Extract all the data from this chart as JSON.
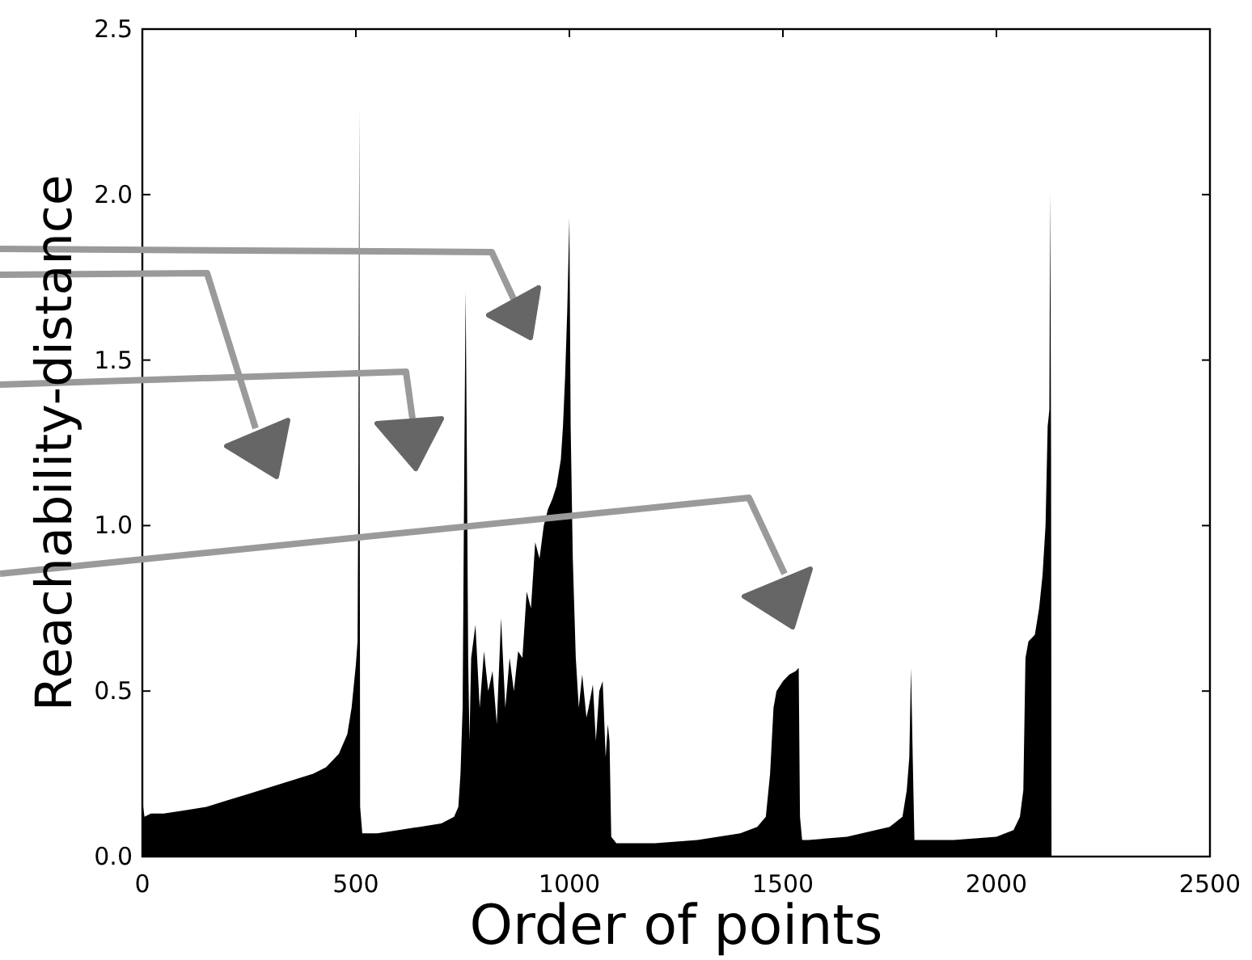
{
  "chart_data": {
    "type": "area",
    "xlabel": "Order of points",
    "ylabel": "Reachability-distance",
    "x": [
      0,
      2,
      5,
      20,
      50,
      100,
      150,
      200,
      250,
      300,
      350,
      400,
      430,
      460,
      480,
      490,
      500,
      504,
      506,
      508,
      510,
      515,
      550,
      600,
      650,
      700,
      730,
      740,
      745,
      750,
      754,
      757,
      760,
      763,
      766,
      770,
      780,
      790,
      800,
      810,
      820,
      830,
      840,
      850,
      860,
      870,
      880,
      890,
      900,
      910,
      920,
      930,
      940,
      950,
      960,
      970,
      980,
      985,
      990,
      995,
      1000,
      1003,
      1008,
      1015,
      1022,
      1030,
      1040,
      1045,
      1055,
      1062,
      1070,
      1078,
      1085,
      1090,
      1094,
      1098,
      1110,
      1200,
      1300,
      1400,
      1440,
      1460,
      1470,
      1478,
      1485,
      1500,
      1515,
      1530,
      1537,
      1540,
      1545,
      1560,
      1650,
      1750,
      1780,
      1790,
      1796,
      1800,
      1804,
      1808,
      1815,
      1900,
      2000,
      2040,
      2055,
      2063,
      2068,
      2075,
      2090,
      2100,
      2108,
      2115,
      2120,
      2124,
      2126,
      2128,
      2129
    ],
    "values": [
      0.42,
      0.15,
      0.12,
      0.13,
      0.13,
      0.14,
      0.15,
      0.17,
      0.19,
      0.21,
      0.23,
      0.25,
      0.27,
      0.31,
      0.37,
      0.45,
      0.58,
      0.65,
      1.2,
      2.26,
      0.15,
      0.07,
      0.07,
      0.08,
      0.09,
      0.1,
      0.12,
      0.15,
      0.25,
      0.45,
      1.2,
      1.71,
      1.2,
      0.6,
      0.35,
      0.6,
      0.7,
      0.45,
      0.62,
      0.5,
      0.56,
      0.4,
      0.72,
      0.45,
      0.6,
      0.5,
      0.62,
      0.6,
      0.8,
      0.75,
      0.95,
      0.9,
      1.0,
      1.05,
      1.08,
      1.12,
      1.2,
      1.3,
      1.45,
      1.65,
      1.93,
      1.3,
      0.9,
      0.6,
      0.45,
      0.55,
      0.42,
      0.45,
      0.52,
      0.35,
      0.5,
      0.53,
      0.3,
      0.4,
      0.35,
      0.06,
      0.04,
      0.04,
      0.05,
      0.07,
      0.09,
      0.12,
      0.25,
      0.45,
      0.5,
      0.53,
      0.55,
      0.56,
      0.57,
      0.12,
      0.05,
      0.05,
      0.06,
      0.09,
      0.12,
      0.2,
      0.3,
      0.57,
      0.3,
      0.05,
      0.05,
      0.05,
      0.06,
      0.08,
      0.12,
      0.2,
      0.6,
      0.65,
      0.67,
      0.75,
      0.85,
      1.0,
      1.3,
      1.35,
      2.01,
      1.2,
      0.0
    ],
    "color": "#000000",
    "xlim": [
      0,
      2500
    ],
    "xticks": [
      0,
      500,
      1000,
      1500,
      2000,
      2500
    ],
    "ylim": [
      0,
      2.5
    ],
    "yticks": [
      {
        "value": 0,
        "label": "0.0"
      },
      {
        "value": 0.5,
        "label": "0.5"
      },
      {
        "value": 1,
        "label": "1.0"
      },
      {
        "value": 1.5,
        "label": "1.5"
      },
      {
        "value": 2,
        "label": "2.0"
      },
      {
        "value": 2.5,
        "label": "2.5"
      }
    ],
    "grid": false
  }
}
